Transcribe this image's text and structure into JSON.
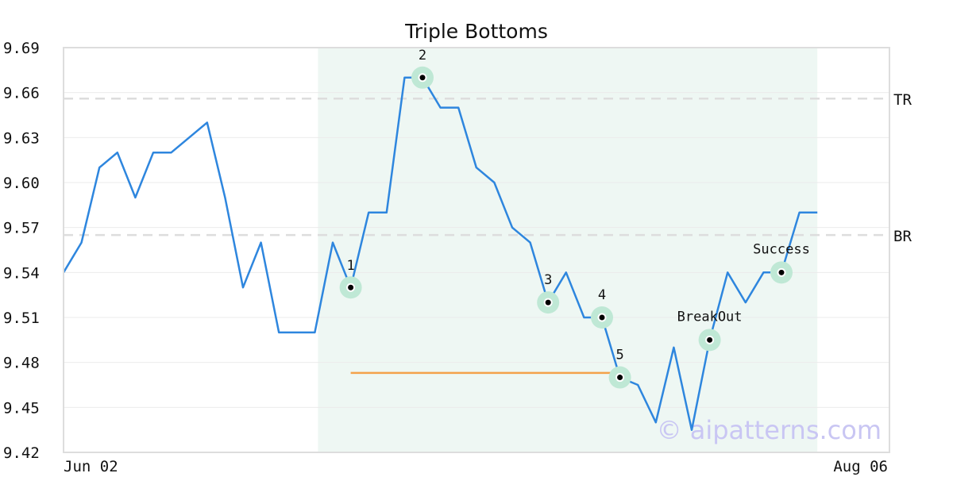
{
  "chart_data": {
    "type": "line",
    "title": "Triple Bottoms",
    "xlabel": "",
    "ylabel": "",
    "ylim": [
      9.42,
      9.69
    ],
    "y_ticks": [
      "9.69",
      "9.66",
      "9.63",
      "9.60",
      "9.57",
      "9.54",
      "9.51",
      "9.48",
      "9.45",
      "9.42"
    ],
    "x_tick_labels": [
      "Jun 02",
      "Aug 06"
    ],
    "grid": true,
    "series": [
      {
        "color": "#2e86de",
        "values": [
          9.54,
          9.56,
          9.61,
          9.62,
          9.59,
          9.62,
          9.62,
          9.63,
          9.64,
          9.59,
          9.53,
          9.56,
          9.5,
          9.5,
          9.5,
          9.56,
          9.53,
          9.58,
          9.58,
          9.67,
          9.67,
          9.65,
          9.65,
          9.61,
          9.6,
          9.57,
          9.56,
          9.52,
          9.54,
          9.51,
          9.51,
          9.47,
          9.465,
          9.44,
          9.49,
          9.435,
          9.495,
          9.54,
          9.52,
          9.54,
          9.54,
          9.58,
          9.58
        ]
      }
    ],
    "levels": [
      {
        "label": "TR",
        "value": 9.656
      },
      {
        "label": "BR",
        "value": 9.565
      }
    ],
    "shaded_range": {
      "start_index": 14,
      "end_index": 42,
      "color": "#eef7f3"
    },
    "support_line": {
      "start_index": 16,
      "end_index": 31,
      "value": 9.473,
      "color": "#f4a24a"
    },
    "annotations": [
      {
        "label": "1",
        "index": 16,
        "value": 9.53
      },
      {
        "label": "2",
        "index": 20,
        "value": 9.67
      },
      {
        "label": "3",
        "index": 27,
        "value": 9.52
      },
      {
        "label": "4",
        "index": 30,
        "value": 9.51
      },
      {
        "label": "5",
        "index": 31,
        "value": 9.47
      },
      {
        "label": "BreakOut",
        "index": 36,
        "value": 9.495
      },
      {
        "label": "Success",
        "index": 40,
        "value": 9.54
      }
    ],
    "watermark": "© aipatterns.com"
  }
}
